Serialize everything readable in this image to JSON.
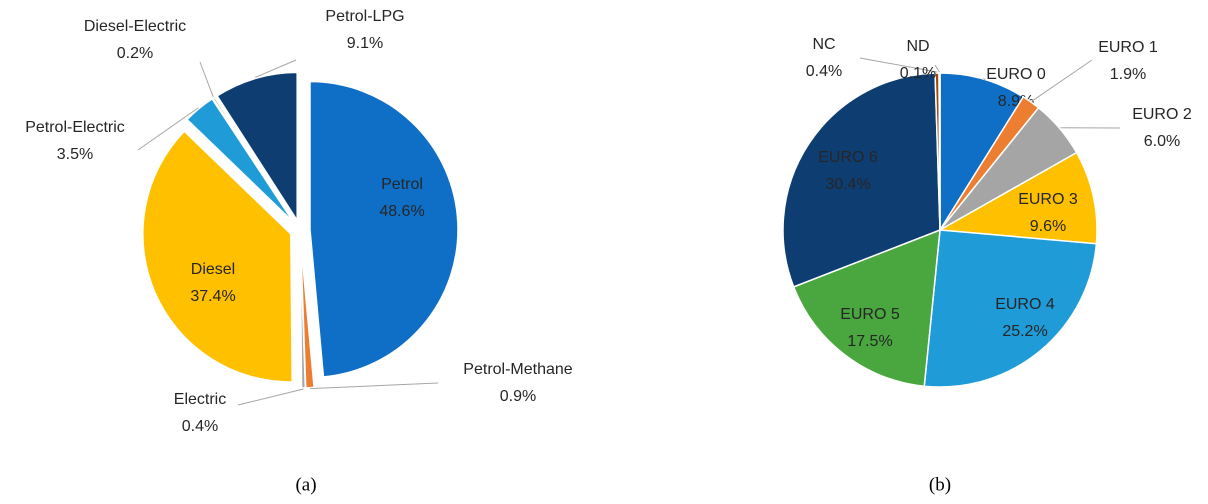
{
  "chart_data": [
    {
      "type": "pie",
      "caption": "(a)",
      "explode": true,
      "categories": [
        "Petrol",
        "Petrol-Methane",
        "Electric",
        "Diesel",
        "Petrol-Electric",
        "Diesel-Electric",
        "Petrol-LPG"
      ],
      "values": [
        48.6,
        0.9,
        0.4,
        37.4,
        3.5,
        0.2,
        9.1
      ],
      "value_labels": [
        "48.6%",
        "0.9%",
        "0.4%",
        "37.4%",
        "3.5%",
        "0.2%",
        "9.1%"
      ],
      "colors": [
        "#0f6fc6",
        "#ed7d31",
        "#a5a5a5",
        "#ffc000",
        "#1f9bd8",
        "#70ad47",
        "#0e3d72"
      ]
    },
    {
      "type": "pie",
      "caption": "(b)",
      "explode": false,
      "categories": [
        "EURO 0",
        "EURO 1",
        "EURO 2",
        "EURO 3",
        "EURO 4",
        "EURO 5",
        "EURO 6",
        "NC",
        "ND"
      ],
      "values": [
        8.9,
        1.9,
        6.0,
        9.6,
        25.2,
        17.5,
        30.4,
        0.4,
        0.1
      ],
      "value_labels": [
        "8.9%",
        "1.9%",
        "6.0%",
        "9.6%",
        "25.2%",
        "17.5%",
        "30.4%",
        "0.4%",
        "0.1%"
      ],
      "colors": [
        "#0f6fc6",
        "#ed7d31",
        "#a5a5a5",
        "#ffc000",
        "#1f9bd8",
        "#4aa63f",
        "#0e3d72",
        "#9e480e",
        "#636363"
      ]
    }
  ]
}
